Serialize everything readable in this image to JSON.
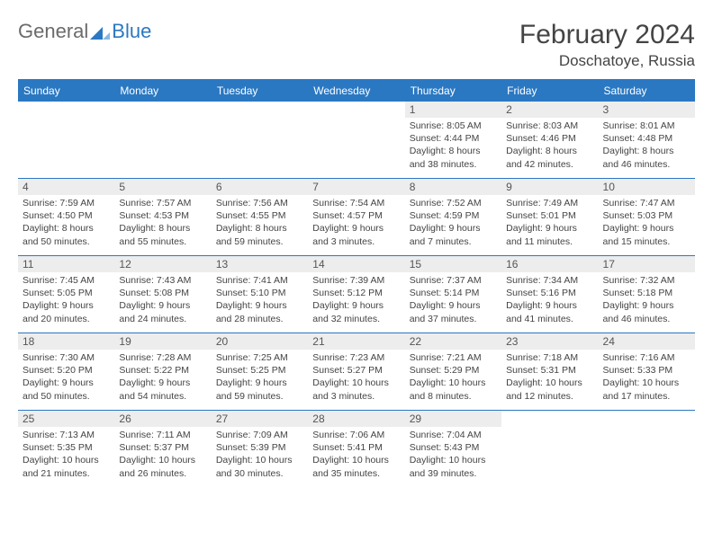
{
  "logo": {
    "general": "General",
    "blue": "Blue"
  },
  "title": "February 2024",
  "location": "Doschatoye, Russia",
  "colors": {
    "header_bg": "#2b78c2",
    "daynum_bg": "#ededed",
    "text": "#444444",
    "logo_gray": "#6b6b6b",
    "logo_blue": "#2b78c2"
  },
  "weekdays": [
    "Sunday",
    "Monday",
    "Tuesday",
    "Wednesday",
    "Thursday",
    "Friday",
    "Saturday"
  ],
  "weeks": [
    [
      null,
      null,
      null,
      null,
      {
        "n": "1",
        "sunrise": "8:05 AM",
        "sunset": "4:44 PM",
        "daylight": "8 hours and 38 minutes."
      },
      {
        "n": "2",
        "sunrise": "8:03 AM",
        "sunset": "4:46 PM",
        "daylight": "8 hours and 42 minutes."
      },
      {
        "n": "3",
        "sunrise": "8:01 AM",
        "sunset": "4:48 PM",
        "daylight": "8 hours and 46 minutes."
      }
    ],
    [
      {
        "n": "4",
        "sunrise": "7:59 AM",
        "sunset": "4:50 PM",
        "daylight": "8 hours and 50 minutes."
      },
      {
        "n": "5",
        "sunrise": "7:57 AM",
        "sunset": "4:53 PM",
        "daylight": "8 hours and 55 minutes."
      },
      {
        "n": "6",
        "sunrise": "7:56 AM",
        "sunset": "4:55 PM",
        "daylight": "8 hours and 59 minutes."
      },
      {
        "n": "7",
        "sunrise": "7:54 AM",
        "sunset": "4:57 PM",
        "daylight": "9 hours and 3 minutes."
      },
      {
        "n": "8",
        "sunrise": "7:52 AM",
        "sunset": "4:59 PM",
        "daylight": "9 hours and 7 minutes."
      },
      {
        "n": "9",
        "sunrise": "7:49 AM",
        "sunset": "5:01 PM",
        "daylight": "9 hours and 11 minutes."
      },
      {
        "n": "10",
        "sunrise": "7:47 AM",
        "sunset": "5:03 PM",
        "daylight": "9 hours and 15 minutes."
      }
    ],
    [
      {
        "n": "11",
        "sunrise": "7:45 AM",
        "sunset": "5:05 PM",
        "daylight": "9 hours and 20 minutes."
      },
      {
        "n": "12",
        "sunrise": "7:43 AM",
        "sunset": "5:08 PM",
        "daylight": "9 hours and 24 minutes."
      },
      {
        "n": "13",
        "sunrise": "7:41 AM",
        "sunset": "5:10 PM",
        "daylight": "9 hours and 28 minutes."
      },
      {
        "n": "14",
        "sunrise": "7:39 AM",
        "sunset": "5:12 PM",
        "daylight": "9 hours and 32 minutes."
      },
      {
        "n": "15",
        "sunrise": "7:37 AM",
        "sunset": "5:14 PM",
        "daylight": "9 hours and 37 minutes."
      },
      {
        "n": "16",
        "sunrise": "7:34 AM",
        "sunset": "5:16 PM",
        "daylight": "9 hours and 41 minutes."
      },
      {
        "n": "17",
        "sunrise": "7:32 AM",
        "sunset": "5:18 PM",
        "daylight": "9 hours and 46 minutes."
      }
    ],
    [
      {
        "n": "18",
        "sunrise": "7:30 AM",
        "sunset": "5:20 PM",
        "daylight": "9 hours and 50 minutes."
      },
      {
        "n": "19",
        "sunrise": "7:28 AM",
        "sunset": "5:22 PM",
        "daylight": "9 hours and 54 minutes."
      },
      {
        "n": "20",
        "sunrise": "7:25 AM",
        "sunset": "5:25 PM",
        "daylight": "9 hours and 59 minutes."
      },
      {
        "n": "21",
        "sunrise": "7:23 AM",
        "sunset": "5:27 PM",
        "daylight": "10 hours and 3 minutes."
      },
      {
        "n": "22",
        "sunrise": "7:21 AM",
        "sunset": "5:29 PM",
        "daylight": "10 hours and 8 minutes."
      },
      {
        "n": "23",
        "sunrise": "7:18 AM",
        "sunset": "5:31 PM",
        "daylight": "10 hours and 12 minutes."
      },
      {
        "n": "24",
        "sunrise": "7:16 AM",
        "sunset": "5:33 PM",
        "daylight": "10 hours and 17 minutes."
      }
    ],
    [
      {
        "n": "25",
        "sunrise": "7:13 AM",
        "sunset": "5:35 PM",
        "daylight": "10 hours and 21 minutes."
      },
      {
        "n": "26",
        "sunrise": "7:11 AM",
        "sunset": "5:37 PM",
        "daylight": "10 hours and 26 minutes."
      },
      {
        "n": "27",
        "sunrise": "7:09 AM",
        "sunset": "5:39 PM",
        "daylight": "10 hours and 30 minutes."
      },
      {
        "n": "28",
        "sunrise": "7:06 AM",
        "sunset": "5:41 PM",
        "daylight": "10 hours and 35 minutes."
      },
      {
        "n": "29",
        "sunrise": "7:04 AM",
        "sunset": "5:43 PM",
        "daylight": "10 hours and 39 minutes."
      },
      null,
      null
    ]
  ],
  "labels": {
    "sunrise": "Sunrise: ",
    "sunset": "Sunset: ",
    "daylight": "Daylight: "
  }
}
